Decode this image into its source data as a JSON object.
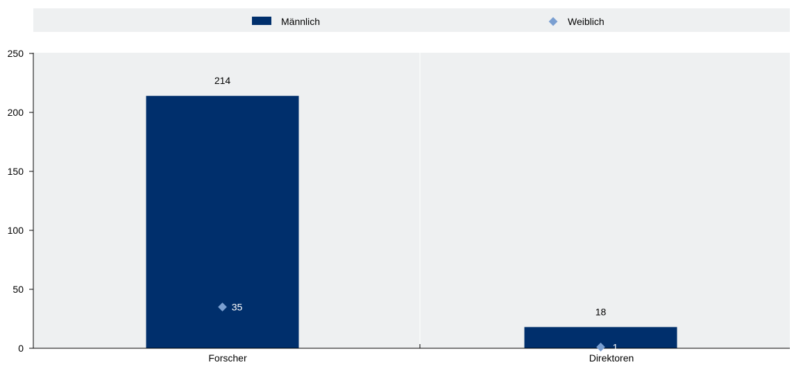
{
  "chart_data": {
    "type": "bar",
    "categories": [
      "Forscher",
      "Direktoren"
    ],
    "series": [
      {
        "name": "Männlich",
        "kind": "bar",
        "values": [
          214,
          18
        ],
        "color": "#002F6C",
        "labels": [
          "214",
          "18"
        ]
      },
      {
        "name": "Weiblich",
        "kind": "marker",
        "marker": "diamond",
        "values": [
          35,
          1
        ],
        "color": "#7A9FD1",
        "labels": [
          "35",
          "1"
        ]
      }
    ],
    "yticks": [
      "0",
      "50",
      "100",
      "150",
      "200",
      "250"
    ],
    "ylim": [
      0,
      250
    ],
    "xlabel": "",
    "ylabel": "",
    "grid": "vertical category separator",
    "legend_position": "top",
    "colors": {
      "plot_background": "#EEF0F1",
      "axis": "#000000",
      "separator": "#FFFFFF"
    }
  }
}
